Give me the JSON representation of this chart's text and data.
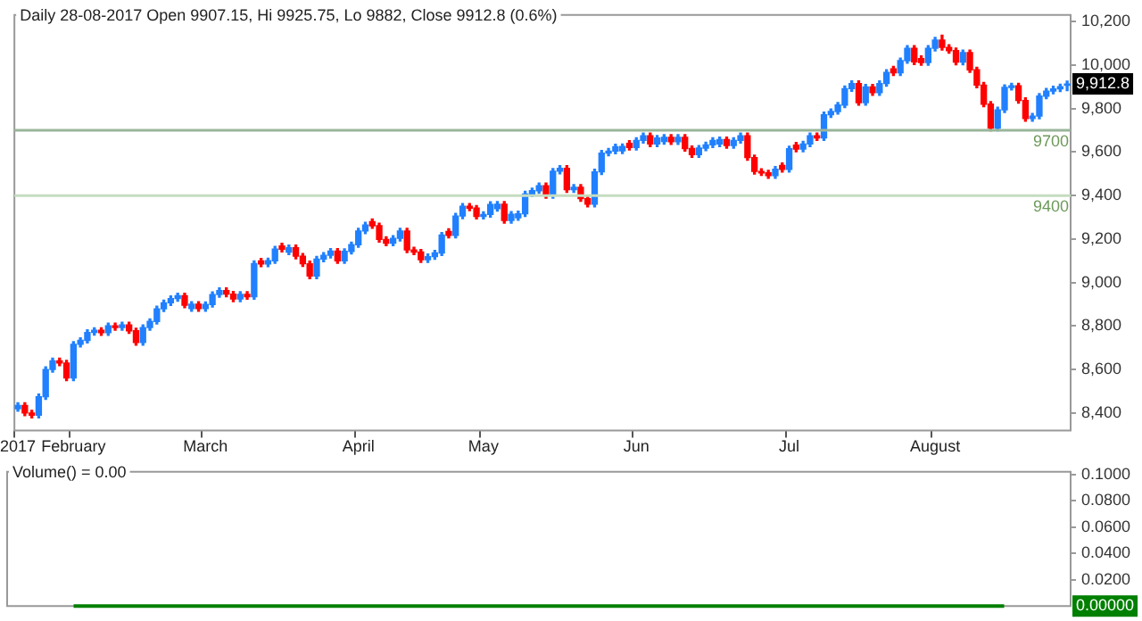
{
  "chart_data": [
    {
      "type": "candlestick",
      "title": "Daily 28-08-2017 Open 9907.15, Hi 9925.75, Lo 9882, Close 9912.8 (0.6%)",
      "categories": [
        "2017",
        null,
        null,
        null,
        null,
        null,
        null,
        null,
        "February",
        null,
        null,
        null,
        null,
        null,
        null,
        null,
        null,
        null,
        null,
        null,
        null,
        null,
        null,
        null,
        null,
        null,
        null,
        "March",
        null,
        null,
        null,
        null,
        null,
        null,
        null,
        null,
        null,
        null,
        null,
        null,
        null,
        null,
        null,
        null,
        null,
        null,
        null,
        null,
        null,
        "April",
        null,
        null,
        null,
        null,
        null,
        null,
        null,
        null,
        null,
        null,
        null,
        null,
        null,
        null,
        null,
        null,
        null,
        "May",
        null,
        null,
        null,
        null,
        null,
        null,
        null,
        null,
        null,
        null,
        null,
        null,
        null,
        null,
        null,
        null,
        null,
        null,
        null,
        null,
        null,
        "Jun",
        null,
        null,
        null,
        null,
        null,
        null,
        null,
        null,
        null,
        null,
        null,
        null,
        null,
        null,
        null,
        null,
        null,
        null,
        null,
        null,
        null,
        "Jul",
        null,
        null,
        null,
        null,
        null,
        null,
        null,
        null,
        null,
        null,
        null,
        null,
        null,
        null,
        null,
        null,
        null,
        null,
        null,
        null,
        "August",
        null,
        null,
        null,
        null,
        null,
        null,
        null,
        null,
        null,
        null,
        null,
        null,
        null,
        null,
        null,
        null,
        null,
        null,
        null
      ],
      "ohlc": [
        [
          8420,
          8447,
          8408,
          8435
        ],
        [
          8435,
          8447,
          8388,
          8400
        ],
        [
          8400,
          8412,
          8378,
          8390
        ],
        [
          8390,
          8487,
          8378,
          8475
        ],
        [
          8475,
          8612,
          8463,
          8600
        ],
        [
          8600,
          8652,
          8588,
          8640
        ],
        [
          8640,
          8652,
          8618,
          8630
        ],
        [
          8630,
          8642,
          8549,
          8561
        ],
        [
          8561,
          8728,
          8549,
          8716
        ],
        [
          8716,
          8746,
          8704,
          8734
        ],
        [
          8734,
          8782,
          8722,
          8770
        ],
        [
          8770,
          8792,
          8758,
          8780
        ],
        [
          8780,
          8792,
          8757,
          8769
        ],
        [
          8769,
          8813,
          8757,
          8801
        ],
        [
          8801,
          8813,
          8781,
          8793
        ],
        [
          8793,
          8817,
          8781,
          8805
        ],
        [
          8805,
          8817,
          8766,
          8778
        ],
        [
          8778,
          8790,
          8712,
          8724
        ],
        [
          8724,
          8805,
          8712,
          8793
        ],
        [
          8793,
          8833,
          8781,
          8821
        ],
        [
          8821,
          8891,
          8809,
          8879
        ],
        [
          8879,
          8919,
          8867,
          8907
        ],
        [
          8907,
          8938,
          8895,
          8926
        ],
        [
          8926,
          8951,
          8914,
          8939
        ],
        [
          8939,
          8951,
          8884,
          8896
        ],
        [
          8880,
          8912,
          8868,
          8900
        ],
        [
          8900,
          8912,
          8868,
          8880
        ],
        [
          8880,
          8911,
          8868,
          8899
        ],
        [
          8899,
          8957,
          8887,
          8945
        ],
        [
          8945,
          8975,
          8933,
          8963
        ],
        [
          8963,
          8975,
          8935,
          8947
        ],
        [
          8947,
          8959,
          8912,
          8924
        ],
        [
          8924,
          8958,
          8912,
          8946
        ],
        [
          8946,
          8958,
          8923,
          8935
        ],
        [
          8935,
          9099,
          8923,
          9087
        ],
        [
          9099,
          9111,
          9073,
          9085
        ],
        [
          9085,
          9112,
          9073,
          9100
        ],
        [
          9100,
          9166,
          9088,
          9154
        ],
        [
          9168,
          9180,
          9141,
          9153
        ],
        [
          9140,
          9172,
          9128,
          9160
        ],
        [
          9160,
          9172,
          9109,
          9121
        ],
        [
          9121,
          9133,
          9074,
          9086
        ],
        [
          9086,
          9098,
          9018,
          9030
        ],
        [
          9030,
          9120,
          9018,
          9108
        ],
        [
          9108,
          9137,
          9096,
          9125
        ],
        [
          9125,
          9156,
          9113,
          9144
        ],
        [
          9144,
          9156,
          9088,
          9100
        ],
        [
          9100,
          9155,
          9088,
          9143
        ],
        [
          9143,
          9186,
          9131,
          9174
        ],
        [
          9174,
          9249,
          9162,
          9237
        ],
        [
          9237,
          9277,
          9225,
          9265
        ],
        [
          9280,
          9292,
          9249,
          9261
        ],
        [
          9261,
          9273,
          9186,
          9198
        ],
        [
          9198,
          9210,
          9169,
          9181
        ],
        [
          9181,
          9215,
          9169,
          9203
        ],
        [
          9203,
          9249,
          9191,
          9237
        ],
        [
          9237,
          9249,
          9138,
          9150
        ],
        [
          9150,
          9162,
          9128,
          9140
        ],
        [
          9140,
          9152,
          9093,
          9105
        ],
        [
          9105,
          9131,
          9093,
          9119
        ],
        [
          9119,
          9148,
          9107,
          9136
        ],
        [
          9136,
          9230,
          9124,
          9218
        ],
        [
          9235,
          9247,
          9205,
          9217
        ],
        [
          9217,
          9318,
          9205,
          9306
        ],
        [
          9306,
          9363,
          9294,
          9351
        ],
        [
          9351,
          9363,
          9330,
          9342
        ],
        [
          9342,
          9354,
          9292,
          9304
        ],
        [
          9304,
          9325,
          9292,
          9313
        ],
        [
          9313,
          9371,
          9301,
          9359
        ],
        [
          9340,
          9372,
          9328,
          9360
        ],
        [
          9360,
          9372,
          9273,
          9285
        ],
        [
          9285,
          9326,
          9273,
          9314
        ],
        [
          9298,
          9328,
          9286,
          9316
        ],
        [
          9316,
          9419,
          9304,
          9407
        ],
        [
          9407,
          9434,
          9395,
          9422
        ],
        [
          9422,
          9457,
          9410,
          9445
        ],
        [
          9445,
          9457,
          9388,
          9400
        ],
        [
          9400,
          9524,
          9388,
          9512
        ],
        [
          9512,
          9537,
          9500,
          9525
        ],
        [
          9525,
          9537,
          9415,
          9427
        ],
        [
          9427,
          9450,
          9415,
          9438
        ],
        [
          9438,
          9450,
          9374,
          9386
        ],
        [
          9386,
          9398,
          9348,
          9360
        ],
        [
          9360,
          9521,
          9348,
          9509
        ],
        [
          9509,
          9607,
          9497,
          9595
        ],
        [
          9595,
          9616,
          9583,
          9604
        ],
        [
          9604,
          9636,
          9592,
          9624
        ],
        [
          9605,
          9637,
          9593,
          9625
        ],
        [
          9640,
          9652,
          9609,
          9621
        ],
        [
          9621,
          9665,
          9609,
          9653
        ],
        [
          9653,
          9687,
          9641,
          9675
        ],
        [
          9675,
          9687,
          9625,
          9637
        ],
        [
          9637,
          9676,
          9625,
          9664
        ],
        [
          9648,
          9680,
          9636,
          9668
        ],
        [
          9668,
          9680,
          9635,
          9647
        ],
        [
          9647,
          9680,
          9635,
          9668
        ],
        [
          9668,
          9680,
          9604,
          9616
        ],
        [
          9616,
          9628,
          9576,
          9588
        ],
        [
          9588,
          9630,
          9576,
          9618
        ],
        [
          9618,
          9645,
          9606,
          9633
        ],
        [
          9633,
          9665,
          9621,
          9653
        ],
        [
          9637,
          9669,
          9625,
          9657
        ],
        [
          9657,
          9669,
          9618,
          9630
        ],
        [
          9630,
          9665,
          9618,
          9653
        ],
        [
          9653,
          9687,
          9641,
          9675
        ],
        [
          9675,
          9687,
          9562,
          9574
        ],
        [
          9574,
          9586,
          9499,
          9511
        ],
        [
          9511,
          9523,
          9492,
          9504
        ],
        [
          9504,
          9516,
          9479,
          9491
        ],
        [
          9491,
          9533,
          9479,
          9521
        ],
        [
          9538,
          9550,
          9508,
          9520
        ],
        [
          9520,
          9627,
          9508,
          9615
        ],
        [
          9632,
          9644,
          9601,
          9613
        ],
        [
          9613,
          9649,
          9601,
          9637
        ],
        [
          9637,
          9687,
          9625,
          9675
        ],
        [
          9675,
          9687,
          9653,
          9665
        ],
        [
          9665,
          9783,
          9653,
          9771
        ],
        [
          9771,
          9798,
          9759,
          9786
        ],
        [
          9786,
          9828,
          9774,
          9816
        ],
        [
          9816,
          9903,
          9804,
          9891
        ],
        [
          9891,
          9927,
          9879,
          9915
        ],
        [
          9915,
          9927,
          9815,
          9827
        ],
        [
          9827,
          9911,
          9815,
          9899
        ],
        [
          9899,
          9911,
          9861,
          9873
        ],
        [
          9873,
          9927,
          9861,
          9915
        ],
        [
          9915,
          9978,
          9903,
          9966
        ],
        [
          9982,
          9994,
          9952,
          9964
        ],
        [
          9964,
          10032,
          9952,
          10020
        ],
        [
          10020,
          10089,
          10008,
          10077
        ],
        [
          10077,
          10089,
          10002,
          10014
        ],
        [
          10030,
          10042,
          9999,
          10011
        ],
        [
          10011,
          10089,
          9999,
          10077
        ],
        [
          10077,
          10127,
          10065,
          10115
        ],
        [
          10115,
          10137,
          10069,
          10081
        ],
        [
          10081,
          10093,
          10054,
          10066
        ],
        [
          10066,
          10078,
          10001,
          10013
        ],
        [
          10013,
          10069,
          10001,
          10057
        ],
        [
          10057,
          10069,
          9966,
          9978
        ],
        [
          9978,
          9990,
          9896,
          9908
        ],
        [
          9908,
          9920,
          9808,
          9820
        ],
        [
          9820,
          9832,
          9698,
          9710
        ],
        [
          9710,
          9806,
          9698,
          9794
        ],
        [
          9794,
          9909,
          9782,
          9897
        ],
        [
          9897,
          9916,
          9885,
          9904
        ],
        [
          9904,
          9916,
          9825,
          9837
        ],
        [
          9837,
          9849,
          9742,
          9754
        ],
        [
          9754,
          9777,
          9742,
          9765
        ],
        [
          9765,
          9869,
          9753,
          9857
        ],
        [
          9857,
          9892,
          9845,
          9880
        ],
        [
          9880,
          9902,
          9868,
          9890
        ],
        [
          9890,
          9912,
          9878,
          9900
        ],
        [
          9907.15,
          9925.75,
          9882,
          9912.8
        ]
      ],
      "colors": [
        "#2080ff",
        "#ff0000",
        "#ff0000",
        "#2080ff",
        "#2080ff",
        "#2080ff",
        "#ff0000",
        "#ff0000",
        "#2080ff",
        "#2080ff",
        "#2080ff",
        "#2080ff",
        "#ff0000",
        "#2080ff",
        "#ff0000",
        "#2080ff",
        "#ff0000",
        "#ff0000",
        "#2080ff",
        "#2080ff",
        "#2080ff",
        "#2080ff",
        "#2080ff",
        "#2080ff",
        "#ff0000",
        "#2080ff",
        "#ff0000",
        "#2080ff",
        "#2080ff",
        "#2080ff",
        "#ff0000",
        "#ff0000",
        "#2080ff",
        "#ff0000",
        "#2080ff",
        "#ff0000",
        "#2080ff",
        "#2080ff",
        "#ff0000",
        "#2080ff",
        "#ff0000",
        "#ff0000",
        "#ff0000",
        "#2080ff",
        "#2080ff",
        "#2080ff",
        "#ff0000",
        "#2080ff",
        "#2080ff",
        "#2080ff",
        "#2080ff",
        "#ff0000",
        "#ff0000",
        "#ff0000",
        "#2080ff",
        "#2080ff",
        "#ff0000",
        "#ff0000",
        "#ff0000",
        "#2080ff",
        "#2080ff",
        "#2080ff",
        "#ff0000",
        "#2080ff",
        "#2080ff",
        "#ff0000",
        "#ff0000",
        "#2080ff",
        "#2080ff",
        "#2080ff",
        "#ff0000",
        "#2080ff",
        "#2080ff",
        "#2080ff",
        "#2080ff",
        "#2080ff",
        "#ff0000",
        "#2080ff",
        "#2080ff",
        "#ff0000",
        "#2080ff",
        "#ff0000",
        "#ff0000",
        "#2080ff",
        "#2080ff",
        "#2080ff",
        "#2080ff",
        "#2080ff",
        "#ff0000",
        "#2080ff",
        "#2080ff",
        "#ff0000",
        "#2080ff",
        "#2080ff",
        "#ff0000",
        "#2080ff",
        "#ff0000",
        "#ff0000",
        "#2080ff",
        "#2080ff",
        "#2080ff",
        "#2080ff",
        "#ff0000",
        "#2080ff",
        "#2080ff",
        "#ff0000",
        "#ff0000",
        "#ff0000",
        "#ff0000",
        "#2080ff",
        "#ff0000",
        "#2080ff",
        "#ff0000",
        "#2080ff",
        "#2080ff",
        "#ff0000",
        "#2080ff",
        "#2080ff",
        "#2080ff",
        "#2080ff",
        "#2080ff",
        "#ff0000",
        "#2080ff",
        "#ff0000",
        "#2080ff",
        "#2080ff",
        "#ff0000",
        "#2080ff",
        "#2080ff",
        "#ff0000",
        "#ff0000",
        "#2080ff",
        "#2080ff",
        "#ff0000",
        "#ff0000",
        "#ff0000",
        "#2080ff",
        "#ff0000",
        "#ff0000",
        "#ff0000",
        "#ff0000",
        "#2080ff",
        "#2080ff",
        "#2080ff",
        "#ff0000",
        "#ff0000",
        "#2080ff",
        "#2080ff",
        "#2080ff",
        "#2080ff",
        "#2080ff",
        "#2080ff"
      ],
      "ylim": [
        8320,
        10230
      ],
      "yticks": [
        {
          "value": 8400,
          "label": "8,400"
        },
        {
          "value": 8600,
          "label": "8,600"
        },
        {
          "value": 8800,
          "label": "8,800"
        },
        {
          "value": 9000,
          "label": "9,000"
        },
        {
          "value": 9200,
          "label": "9,200"
        },
        {
          "value": 9400,
          "label": "9,400"
        },
        {
          "value": 9600,
          "label": "9,600"
        },
        {
          "value": 9800,
          "label": "9,800"
        },
        {
          "value": 10000,
          "label": "10,000"
        },
        {
          "value": 10200,
          "label": "10,200"
        }
      ],
      "ref_lines": [
        {
          "axis": "y",
          "value": 9700,
          "label": "9700",
          "color": "#9ab59a"
        },
        {
          "axis": "y",
          "value": 9400,
          "label": "9400",
          "color": "#c5dcc0"
        }
      ],
      "annotations": [
        {
          "text": "9,912.8",
          "y": 9912.8
        }
      ]
    },
    {
      "type": "line",
      "title": "Volume() = 0.00",
      "categories": [
        null,
        null,
        null,
        null,
        null,
        null,
        null,
        null
      ],
      "values": [
        0,
        0,
        0,
        0,
        0,
        0,
        0,
        0
      ],
      "color": "#008000",
      "ylim": [
        0,
        0.102
      ],
      "yticks": [
        {
          "value": 0.02,
          "label": "0.0200"
        },
        {
          "value": 0.04,
          "label": "0.0400"
        },
        {
          "value": 0.06,
          "label": "0.0600"
        },
        {
          "value": 0.08,
          "label": "0.0800"
        },
        {
          "value": 0.1,
          "label": "0.1000"
        }
      ],
      "tick_labels": "y",
      "annotations": [
        {
          "text": "0.00000",
          "y": 0
        }
      ]
    }
  ]
}
